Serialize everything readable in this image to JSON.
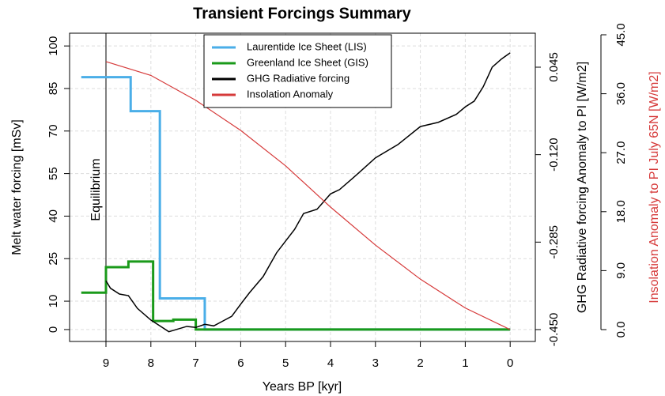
{
  "chart_data": {
    "type": "line",
    "title": "Transient Forcings Summary",
    "x_label": "Years BP [kyr]",
    "y_label": "Melt water forcing [mSv]",
    "y2_label": "GHG Radiative forcing Anomaly to PI [W/m2]",
    "y3_label": "Insolation Anomaly to PI July 65N [W/m2]",
    "y3_label_color": "#d63a3a",
    "xlim": [
      9.81,
      -0.56
    ],
    "xticks": [
      9,
      8,
      7,
      6,
      5,
      4,
      3,
      2,
      1,
      0
    ],
    "ylim": [
      -4.2,
      104.5
    ],
    "yticks": [
      0,
      10,
      25,
      40,
      55,
      70,
      85,
      100
    ],
    "y2lim": [
      -0.4724,
      0.1091
    ],
    "y2ticks": [
      {
        "value": -0.45,
        "label": "-0.450"
      },
      {
        "value": -0.285,
        "label": "-0.285"
      },
      {
        "value": -0.12,
        "label": "-0.120"
      },
      {
        "value": 0.045,
        "label": "0.045"
      }
    ],
    "y3lim": [
      -1.81,
      45.24
    ],
    "y3ticks": [
      {
        "value": 0,
        "label": "0.0"
      },
      {
        "value": 9,
        "label": "9.0"
      },
      {
        "value": 18,
        "label": "18.0"
      },
      {
        "value": 27,
        "label": "27.0"
      },
      {
        "value": 36,
        "label": "36.0"
      },
      {
        "value": 45,
        "label": "45.0"
      }
    ],
    "grid": true,
    "legend": "top",
    "annotations": [
      {
        "text": "Equilibrium",
        "x": 9
      }
    ],
    "series": [
      {
        "name": "Laurentide Ice Sheet (LIS)",
        "color": "#4aaee8",
        "width": 3,
        "x": [
          9.55,
          8.45,
          8.45,
          7.8,
          7.8,
          6.8,
          6.8,
          0
        ],
        "values": [
          89,
          89,
          77,
          77,
          11,
          11,
          0,
          0
        ]
      },
      {
        "name": "Greenland Ice Sheet (GIS)",
        "color": "#1a9a1a",
        "width": 3,
        "x": [
          9.55,
          9.0,
          9.0,
          8.5,
          8.5,
          7.95,
          7.95,
          7.5,
          7.5,
          7.0,
          7.0,
          0
        ],
        "values": [
          13,
          13,
          22,
          22,
          24,
          24,
          3,
          3,
          3.5,
          3.5,
          0,
          0
        ]
      },
      {
        "name": "GHG Radiative forcing",
        "color": "#000000",
        "width": 1.5,
        "axis": "y2",
        "x": [
          9.0,
          8.9,
          8.7,
          8.5,
          8.3,
          8.0,
          7.8,
          7.6,
          7.4,
          7.2,
          7.0,
          6.8,
          6.6,
          6.4,
          6.2,
          6.0,
          5.8,
          5.5,
          5.2,
          5.0,
          4.8,
          4.6,
          4.3,
          4.0,
          3.8,
          3.5,
          3.3,
          3.0,
          2.5,
          2.0,
          1.6,
          1.2,
          1.0,
          0.8,
          0.6,
          0.4,
          0.2,
          0.0
        ],
        "values": [
          -0.358,
          -0.372,
          -0.383,
          -0.386,
          -0.41,
          -0.432,
          -0.443,
          -0.454,
          -0.449,
          -0.444,
          -0.446,
          -0.44,
          -0.443,
          -0.434,
          -0.425,
          -0.402,
          -0.38,
          -0.35,
          -0.305,
          -0.283,
          -0.261,
          -0.231,
          -0.223,
          -0.194,
          -0.186,
          -0.164,
          -0.149,
          -0.126,
          -0.101,
          -0.067,
          -0.059,
          -0.044,
          -0.03,
          -0.019,
          0.008,
          0.045,
          0.06,
          0.072
        ]
      },
      {
        "name": "Insolation Anomaly",
        "color": "#d63a3a",
        "width": 1.2,
        "axis": "y3",
        "x": [
          9,
          8,
          7,
          6,
          5,
          4,
          3,
          2,
          1,
          0
        ],
        "values": [
          40.9,
          38.8,
          35.0,
          30.4,
          25.0,
          18.7,
          12.9,
          7.7,
          3.3,
          0
        ]
      }
    ]
  }
}
